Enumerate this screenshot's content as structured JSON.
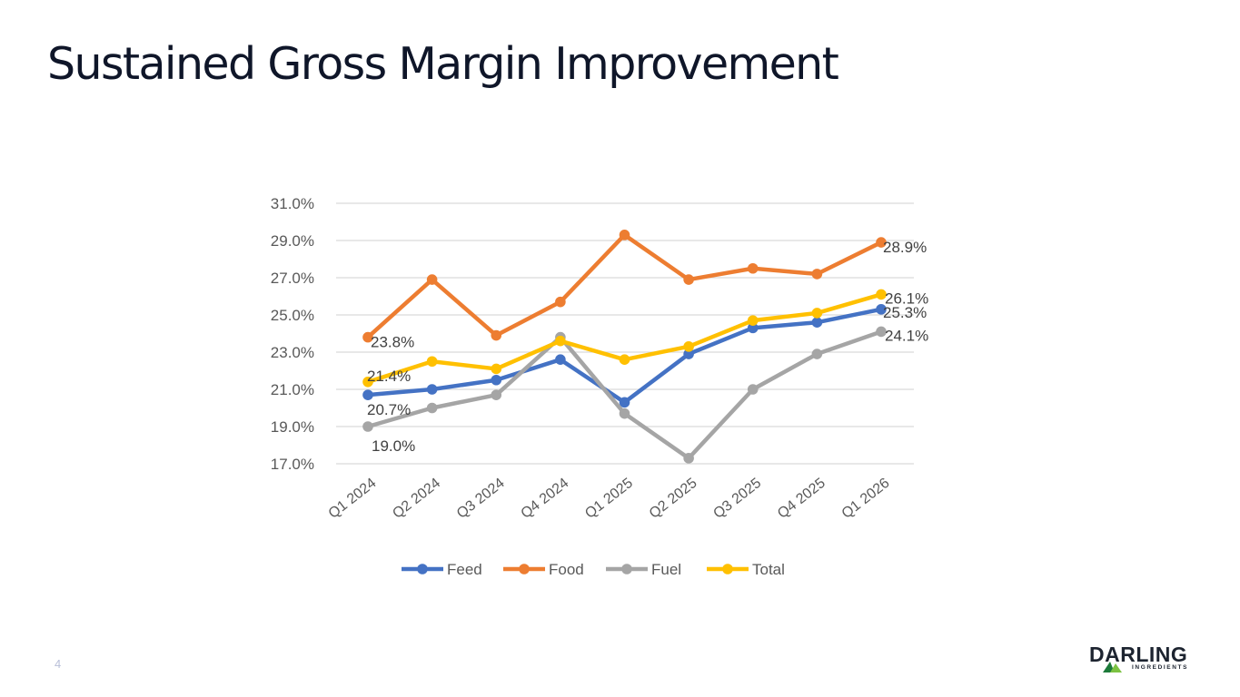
{
  "slide": {
    "title": "Sustained Gross Margin Improvement",
    "page_number": "4"
  },
  "logo": {
    "name": "DARLING",
    "tagline": "INGREDIENTS",
    "colors": {
      "text": "#1d2430",
      "mark_dark": "#1c7a3a",
      "mark_light": "#7cc242"
    }
  },
  "chart_data": {
    "type": "line",
    "title": "",
    "xlabel": "",
    "ylabel": "",
    "ylim": [
      17.0,
      31.0
    ],
    "y_ticks": [
      "17.0%",
      "19.0%",
      "21.0%",
      "23.0%",
      "25.0%",
      "27.0%",
      "29.0%",
      "31.0%"
    ],
    "y_tick_values": [
      17,
      19,
      21,
      23,
      25,
      27,
      29,
      31
    ],
    "categories": [
      "Q1 2024",
      "Q2 2024",
      "Q3 2024",
      "Q4 2024",
      "Q1 2025",
      "Q2 2025",
      "Q3 2025",
      "Q4 2025",
      "Q1 2026"
    ],
    "series": [
      {
        "name": "Feed",
        "color": "#4472c4",
        "values": [
          20.7,
          21.0,
          21.5,
          22.6,
          20.3,
          22.9,
          24.3,
          24.6,
          25.3
        ]
      },
      {
        "name": "Food",
        "color": "#ed7d31",
        "values": [
          23.8,
          26.9,
          23.9,
          25.7,
          29.3,
          26.9,
          27.5,
          27.2,
          28.9
        ]
      },
      {
        "name": "Fuel",
        "color": "#a5a5a5",
        "values": [
          19.0,
          20.0,
          20.7,
          23.8,
          19.7,
          17.3,
          21.0,
          22.9,
          24.1
        ]
      },
      {
        "name": "Total",
        "color": "#ffc000",
        "values": [
          21.4,
          22.5,
          22.1,
          23.6,
          22.6,
          23.3,
          24.7,
          25.1,
          26.1
        ]
      }
    ],
    "data_labels": [
      {
        "series": "Food",
        "index": 0,
        "text": "23.8%"
      },
      {
        "series": "Total",
        "index": 0,
        "text": "21.4%"
      },
      {
        "series": "Feed",
        "index": 0,
        "text": "20.7%"
      },
      {
        "series": "Fuel",
        "index": 0,
        "text": "19.0%"
      },
      {
        "series": "Food",
        "index": 8,
        "text": "28.9%"
      },
      {
        "series": "Total",
        "index": 8,
        "text": "26.1%"
      },
      {
        "series": "Feed",
        "index": 8,
        "text": "25.3%"
      },
      {
        "series": "Fuel",
        "index": 8,
        "text": "24.1%"
      }
    ],
    "legend_position": "bottom",
    "grid": true
  }
}
